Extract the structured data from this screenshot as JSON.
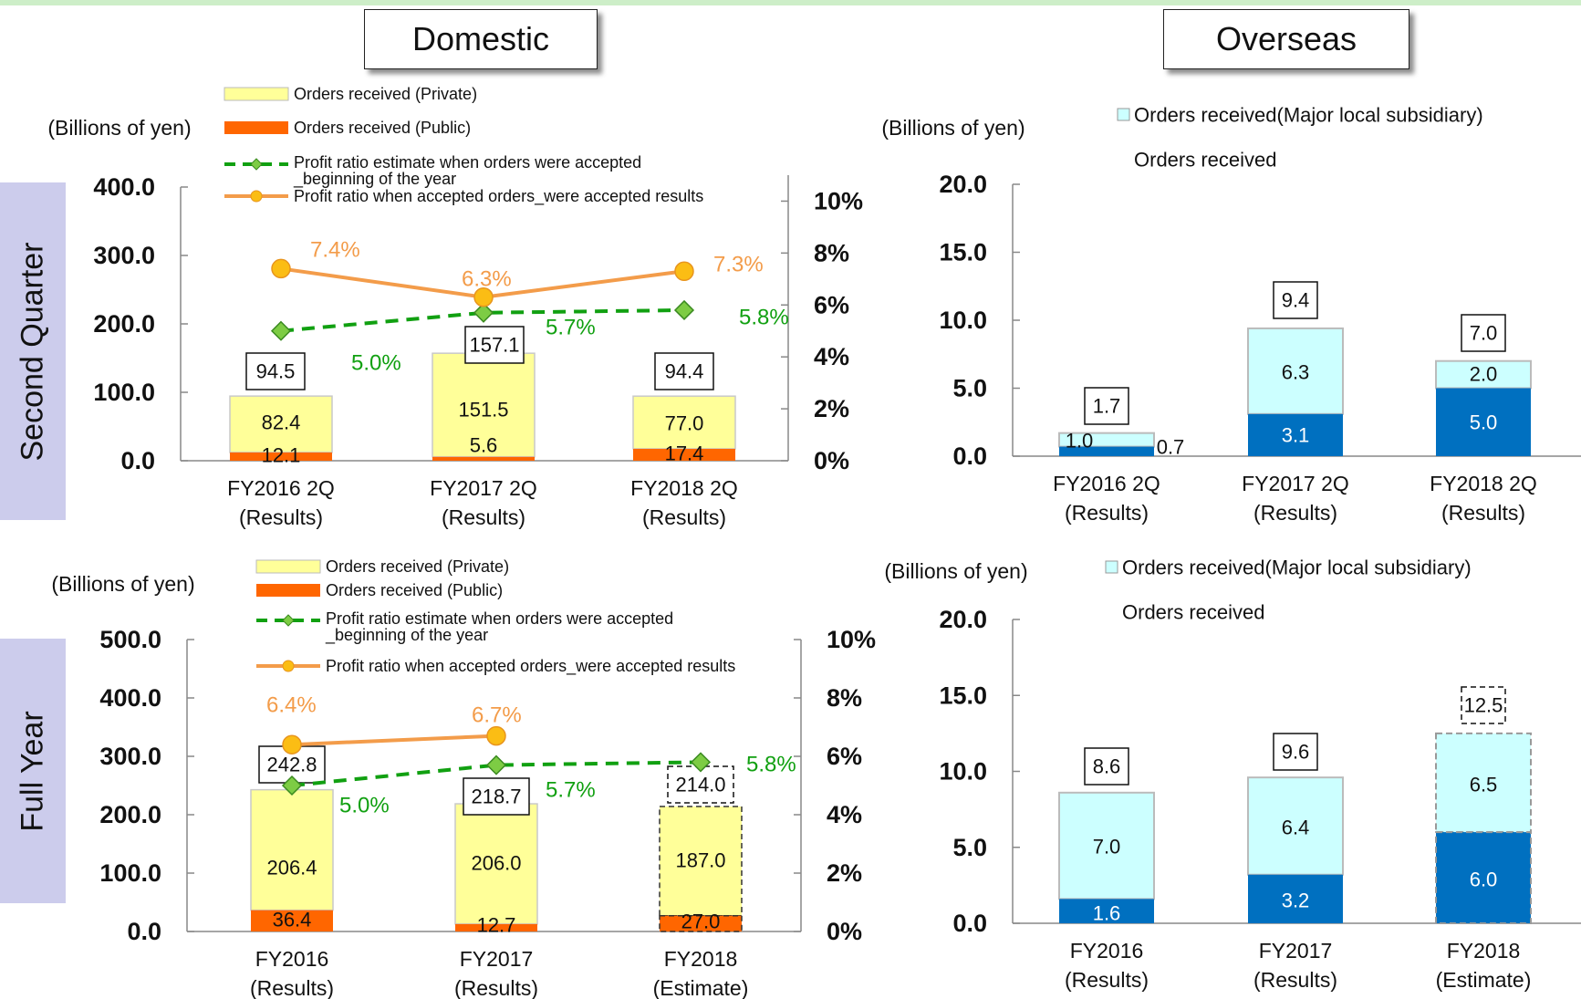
{
  "headers": {
    "domestic": "Domestic",
    "overseas": "Overseas"
  },
  "row_labels": {
    "q2": "Second Quarter",
    "fy": "Full Year"
  },
  "colors": {
    "private": "#ffff99",
    "public": "#ff6600",
    "estimate_line": "#11a011",
    "result_line": "#f39c4a",
    "overseas_total": "#ccffff",
    "overseas_sub": "#0070c0",
    "estimate_text": "#11a011",
    "result_text": "#f39c4a"
  },
  "chart_data": [
    {
      "id": "domestic_q2",
      "type": "bar",
      "ylabel": "(Billions of yen)",
      "ylim": [
        0,
        400
      ],
      "y_ticks": [
        "0.0",
        "100.0",
        "200.0",
        "300.0",
        "400.0"
      ],
      "y2lim": [
        0,
        11
      ],
      "y2_ticks": [
        "0%",
        "2%",
        "4%",
        "6%",
        "8%",
        "10%"
      ],
      "categories": [
        [
          "FY2016 2Q",
          "(Results)"
        ],
        [
          "FY2017 2Q",
          "(Results)"
        ],
        [
          "FY2018 2Q",
          "(Results)"
        ]
      ],
      "legend": [
        "Orders received (Private)",
        "Orders received (Public)",
        "Profit ratio estimate when orders were accepted _beginning of the year",
        "Profit ratio when accepted orders_were accepted results"
      ],
      "series": [
        {
          "name": "Orders received (Private)",
          "values": [
            82.4,
            151.5,
            77.0
          ],
          "labels": [
            "82.4",
            "151.5",
            "77.0"
          ]
        },
        {
          "name": "Orders received (Public)",
          "values": [
            12.1,
            5.6,
            17.4
          ],
          "labels": [
            "12.1",
            "5.6",
            "17.4"
          ]
        }
      ],
      "totals": [
        "94.5",
        "157.1",
        "94.4"
      ],
      "estimate_ratio": {
        "values": [
          5.0,
          5.7,
          5.8
        ],
        "labels": [
          "5.0%",
          "5.7%",
          "5.8%"
        ]
      },
      "result_ratio": {
        "values": [
          7.4,
          6.3,
          7.3
        ],
        "labels": [
          "7.4%",
          "6.3%",
          "7.3%"
        ]
      }
    },
    {
      "id": "domestic_fy",
      "type": "bar",
      "ylabel": "(Billions of yen)",
      "ylim": [
        0,
        500
      ],
      "y_ticks": [
        "0.0",
        "100.0",
        "200.0",
        "300.0",
        "400.0",
        "500.0"
      ],
      "y2lim": [
        0,
        10
      ],
      "y2_ticks": [
        "0%",
        "2%",
        "4%",
        "6%",
        "8%",
        "10%"
      ],
      "categories": [
        [
          "FY2016",
          "(Results)"
        ],
        [
          "FY2017",
          "(Results)"
        ],
        [
          "FY2018",
          "(Estimate)"
        ]
      ],
      "legend": [
        "Orders received (Private)",
        "Orders received (Public)",
        "Profit ratio estimate when orders were accepted _beginning of the year",
        "Profit ratio when accepted orders_were accepted results"
      ],
      "series": [
        {
          "name": "Orders received (Private)",
          "values": [
            206.4,
            206.0,
            187.0
          ],
          "labels": [
            "206.4",
            "206.0",
            "187.0"
          ]
        },
        {
          "name": "Orders received (Public)",
          "values": [
            36.4,
            12.7,
            27.0
          ],
          "labels": [
            "36.4",
            "12.7",
            "27.0"
          ]
        }
      ],
      "totals": [
        "242.8",
        "218.7",
        "214.0"
      ],
      "estimate_ratio": {
        "values": [
          5.0,
          5.7,
          5.8
        ],
        "labels": [
          "5.0%",
          "5.7%",
          "5.8%"
        ]
      },
      "result_ratio": {
        "values": [
          6.4,
          6.7
        ],
        "labels": [
          "6.4%",
          "6.7%"
        ]
      }
    },
    {
      "id": "overseas_q2",
      "type": "bar",
      "ylabel": "(Billions of yen)",
      "ylim": [
        0,
        20
      ],
      "y_ticks": [
        "0.0",
        "5.0",
        "10.0",
        "15.0",
        "20.0"
      ],
      "categories": [
        [
          "FY2016 2Q",
          "(Results)"
        ],
        [
          "FY2017 2Q",
          "(Results)"
        ],
        [
          "FY2018 2Q",
          "(Results)"
        ]
      ],
      "legend": [
        "Orders received(Major local subsidiary)",
        "Orders received"
      ],
      "totals_values": [
        1.7,
        9.4,
        7.0
      ],
      "totals": [
        "1.7",
        "9.4",
        "7.0"
      ],
      "subsidiary": {
        "values": [
          0.7,
          3.1,
          5.0
        ],
        "labels": [
          "0.7",
          "3.1",
          "5.0"
        ]
      },
      "others": {
        "values": [
          1.0,
          6.3,
          2.0
        ],
        "labels": [
          "1.0",
          "6.3",
          "2.0"
        ]
      }
    },
    {
      "id": "overseas_fy",
      "type": "bar",
      "ylabel": "(Billions of yen)",
      "ylim": [
        0,
        20
      ],
      "y_ticks": [
        "0.0",
        "5.0",
        "10.0",
        "15.0",
        "20.0"
      ],
      "categories": [
        [
          "FY2016",
          "(Results)"
        ],
        [
          "FY2017",
          "(Results)"
        ],
        [
          "FY2018",
          "(Estimate)"
        ]
      ],
      "legend": [
        "Orders received(Major local subsidiary)",
        "Orders received"
      ],
      "totals_values": [
        8.6,
        9.6,
        12.5
      ],
      "totals": [
        "8.6",
        "9.6",
        "12.5"
      ],
      "subsidiary": {
        "values": [
          1.6,
          3.2,
          6.0
        ],
        "labels": [
          "1.6",
          "3.2",
          "6.0"
        ]
      },
      "others": {
        "values": [
          7.0,
          6.4,
          6.5
        ],
        "labels": [
          "7.0",
          "6.4",
          "6.5"
        ]
      }
    }
  ]
}
